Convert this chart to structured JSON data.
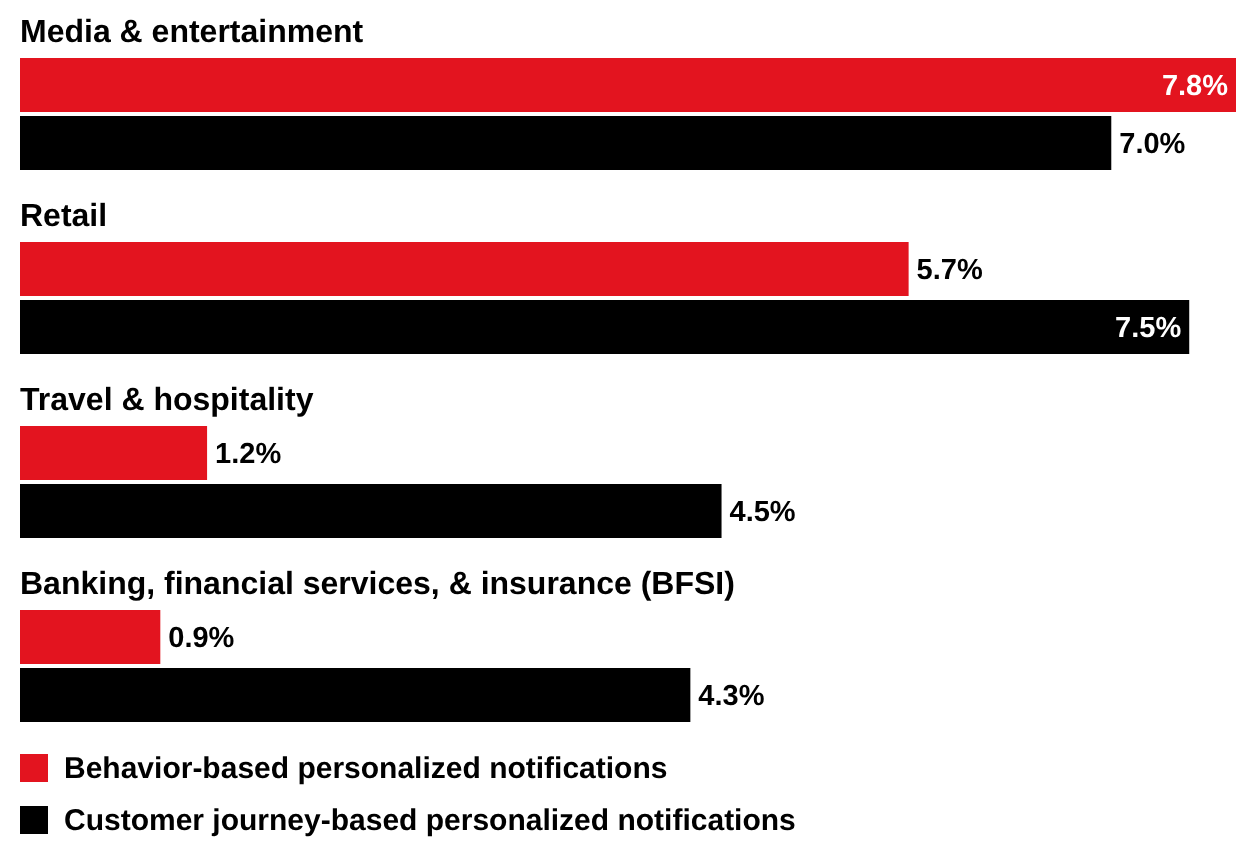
{
  "chart_data": {
    "type": "bar",
    "orientation": "horizontal",
    "categories": [
      "Media & entertainment",
      "Retail",
      "Travel & hospitality",
      "Banking, financial services, & insurance (BFSI)"
    ],
    "series": [
      {
        "name": "Behavior-based personalized notifications",
        "color": "#e3141f",
        "values": [
          7.8,
          5.7,
          1.2,
          0.9
        ],
        "value_labels": [
          "7.8%",
          "5.7%",
          "1.2%",
          "0.9%"
        ]
      },
      {
        "name": "Customer journey-based personalized notifications",
        "color": "#000000",
        "values": [
          7.0,
          7.5,
          4.5,
          4.3
        ],
        "value_labels": [
          "7.0%",
          "7.5%",
          "4.5%",
          "4.3%"
        ]
      }
    ],
    "legend": "bottom"
  }
}
